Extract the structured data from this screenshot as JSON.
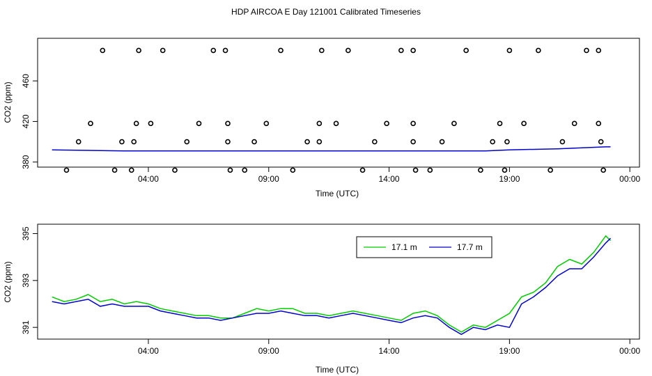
{
  "figure": {
    "title": "HDP AIRCOA E  Day 121001  Calibrated Timeseries"
  },
  "chart_data": [
    {
      "type": "scatter",
      "xlabel": "Time (UTC)",
      "ylabel": "CO2 (ppm)",
      "x_tick_labels": [
        "04:00",
        "09:00",
        "14:00",
        "19:00",
        "00:00"
      ],
      "x_tick_hours": [
        4,
        9,
        14,
        19,
        24
      ],
      "xlim": [
        -0.6,
        24.4
      ],
      "y_ticks": [
        380,
        420,
        460
      ],
      "ylim": [
        375,
        502
      ],
      "grid": false,
      "series": [
        {
          "color": "#008800",
          "points": [
            [
              0.6,
              372
            ],
            [
              1.1,
              400
            ],
            [
              1.6,
              418
            ],
            [
              2.1,
              490
            ],
            [
              2.6,
              372
            ],
            [
              2.9,
              400
            ],
            [
              3.3,
              372
            ],
            [
              3.4,
              400
            ],
            [
              3.5,
              418
            ],
            [
              3.6,
              490
            ],
            [
              4.1,
              418
            ],
            [
              4.6,
              490
            ],
            [
              5.1,
              372
            ],
            [
              5.6,
              400
            ],
            [
              6.1,
              418
            ],
            [
              6.7,
              490
            ],
            [
              7.2,
              490
            ],
            [
              7.3,
              418
            ],
            [
              7.3,
              400
            ],
            [
              7.4,
              372
            ],
            [
              8.0,
              372
            ],
            [
              8.4,
              400
            ],
            [
              8.9,
              418
            ],
            [
              9.5,
              490
            ],
            [
              10.0,
              372
            ],
            [
              10.6,
              400
            ],
            [
              11.1,
              418
            ],
            [
              11.2,
              490
            ],
            [
              11.1,
              400
            ],
            [
              11.8,
              418
            ],
            [
              12.3,
              490
            ],
            [
              12.9,
              372
            ],
            [
              13.4,
              400
            ],
            [
              13.9,
              418
            ],
            [
              14.5,
              490
            ],
            [
              15.0,
              490
            ],
            [
              15.0,
              418
            ],
            [
              15.0,
              400
            ],
            [
              15.1,
              372
            ],
            [
              15.7,
              372
            ],
            [
              16.2,
              400
            ],
            [
              16.7,
              418
            ],
            [
              17.2,
              490
            ],
            [
              17.8,
              372
            ],
            [
              18.3,
              400
            ],
            [
              18.6,
              418
            ],
            [
              18.8,
              372
            ],
            [
              18.9,
              400
            ],
            [
              19.0,
              490
            ],
            [
              19.6,
              418
            ],
            [
              20.2,
              490
            ],
            [
              20.7,
              372
            ],
            [
              21.2,
              400
            ],
            [
              21.7,
              418
            ],
            [
              22.2,
              490
            ],
            [
              22.7,
              490
            ],
            [
              22.7,
              418
            ],
            [
              22.8,
              400
            ],
            [
              22.9,
              372
            ]
          ]
        },
        {
          "color": "#0000cc",
          "points": [
            [
              0.0,
              392
            ],
            [
              3.0,
              391
            ],
            [
              6.0,
              391
            ],
            [
              9.0,
              391
            ],
            [
              12.0,
              391
            ],
            [
              15.0,
              391
            ],
            [
              18.0,
              391
            ],
            [
              19.0,
              392
            ],
            [
              21.0,
              393
            ],
            [
              23.0,
              395
            ],
            [
              23.2,
              395
            ]
          ]
        }
      ]
    },
    {
      "type": "line",
      "xlabel": "Time (UTC)",
      "ylabel": "CO2 (ppm)",
      "x_tick_labels": [
        "04:00",
        "09:00",
        "14:00",
        "19:00",
        "00:00"
      ],
      "x_tick_hours": [
        4,
        9,
        14,
        19,
        24
      ],
      "xlim": [
        -0.6,
        24.4
      ],
      "y_ticks": [
        391,
        393,
        395
      ],
      "ylim": [
        390.5,
        395.4
      ],
      "grid": false,
      "legend_position": "top-right",
      "series": [
        {
          "name": "17.1 m",
          "color": "#00cc00",
          "x": [
            0,
            0.5,
            1,
            1.5,
            2,
            2.5,
            3,
            3.5,
            4,
            4.5,
            5,
            5.5,
            6,
            6.5,
            7,
            7.5,
            8,
            8.5,
            9,
            9.5,
            10,
            10.5,
            11,
            11.5,
            12,
            12.5,
            13,
            13.5,
            14,
            14.5,
            15,
            15.5,
            16,
            16.5,
            17,
            17.5,
            18,
            18.5,
            19,
            19.5,
            20,
            20.5,
            21,
            21.5,
            22,
            22.5,
            23,
            23.2
          ],
          "values": [
            392.3,
            392.1,
            392.2,
            392.4,
            392.1,
            392.2,
            392.0,
            392.1,
            392.0,
            391.8,
            391.7,
            391.6,
            391.5,
            391.5,
            391.4,
            391.4,
            391.6,
            391.8,
            391.7,
            391.8,
            391.8,
            391.6,
            391.6,
            391.5,
            391.6,
            391.7,
            391.6,
            391.5,
            391.4,
            391.3,
            391.6,
            391.7,
            391.5,
            391.1,
            390.8,
            391.1,
            391.0,
            391.3,
            391.6,
            392.3,
            392.5,
            392.9,
            393.6,
            393.9,
            393.7,
            394.2,
            394.9,
            394.7
          ]
        },
        {
          "name": "17.7 m",
          "color": "#0000cc",
          "x": [
            0,
            0.5,
            1,
            1.5,
            2,
            2.5,
            3,
            3.5,
            4,
            4.5,
            5,
            5.5,
            6,
            6.5,
            7,
            7.5,
            8,
            8.5,
            9,
            9.5,
            10,
            10.5,
            11,
            11.5,
            12,
            12.5,
            13,
            13.5,
            14,
            14.5,
            15,
            15.5,
            16,
            16.5,
            17,
            17.5,
            18,
            18.5,
            19,
            19.5,
            20,
            20.5,
            21,
            21.5,
            22,
            22.5,
            23,
            23.2
          ],
          "values": [
            392.1,
            392.0,
            392.1,
            392.2,
            391.9,
            392.0,
            391.9,
            391.9,
            391.9,
            391.7,
            391.6,
            391.5,
            391.4,
            391.4,
            391.3,
            391.4,
            391.5,
            391.6,
            391.6,
            391.7,
            391.6,
            391.5,
            391.5,
            391.4,
            391.5,
            391.6,
            391.5,
            391.4,
            391.3,
            391.2,
            391.4,
            391.5,
            391.4,
            391.0,
            390.7,
            391.0,
            390.9,
            391.1,
            391.0,
            392.0,
            392.3,
            392.7,
            393.2,
            393.5,
            393.5,
            394.0,
            394.6,
            394.8
          ]
        }
      ]
    }
  ]
}
